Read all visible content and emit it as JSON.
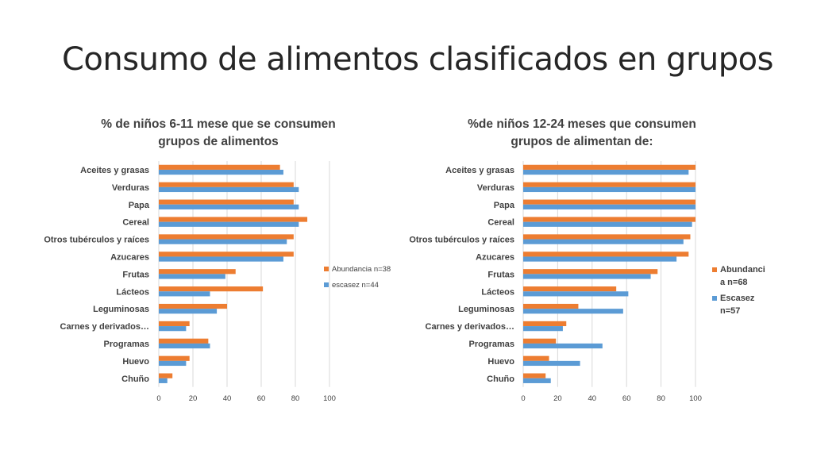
{
  "slide": {
    "title": "Consumo de alimentos clasificados en grupos"
  },
  "colors": {
    "series_orange": "#ED7D31",
    "series_blue": "#5B9BD5",
    "gridline": "#D9D9D9",
    "text": "#404040"
  },
  "chart_data": [
    {
      "type": "bar",
      "orientation": "horizontal",
      "title_lines": [
        "% de niños 6-11 mese que se consumen",
        "grupos de alimentos"
      ],
      "categories": [
        "Aceites y grasas",
        "Verduras",
        "Papa",
        "Cereal",
        "Otros tubérculos y raíces",
        "Azucares",
        "Frutas",
        "Lácteos",
        "Leguminosas",
        "Carnes y derivados…",
        "Programas",
        "Huevo",
        "Chuño"
      ],
      "series": [
        {
          "name": "Abundancia n=38",
          "values": [
            71,
            79,
            79,
            87,
            79,
            79,
            45,
            61,
            40,
            18,
            29,
            18,
            8
          ]
        },
        {
          "name": "escasez n=44",
          "values": [
            73,
            82,
            82,
            82,
            75,
            73,
            39,
            30,
            34,
            16,
            30,
            16,
            5
          ]
        }
      ],
      "xlim": [
        0,
        100
      ],
      "xticks": [
        "0",
        "20",
        "40",
        "60",
        "80",
        "100"
      ],
      "grid": true,
      "legend_position": "right",
      "legend_lines": [
        [
          "Abundancia n=38"
        ],
        [
          "escasez n=44"
        ]
      ]
    },
    {
      "type": "bar",
      "orientation": "horizontal",
      "title_lines": [
        "%de niños 12-24 meses que consumen",
        "grupos de  alimentan de:"
      ],
      "categories": [
        "Aceites y grasas",
        "Verduras",
        "Papa",
        "Cereal",
        "Otros tubérculos y raíces",
        "Azucares",
        "Frutas",
        "Lácteos",
        "Leguminosas",
        "Carnes y derivados…",
        "Programas",
        "Huevo",
        "Chuño"
      ],
      "series": [
        {
          "name": "Abundancia n=68",
          "values": [
            100,
            100,
            100,
            100,
            97,
            96,
            78,
            54,
            32,
            25,
            19,
            15,
            13
          ]
        },
        {
          "name": "Escasez n=57",
          "values": [
            96,
            100,
            100,
            98,
            93,
            89,
            74,
            61,
            58,
            23,
            46,
            33,
            16
          ]
        }
      ],
      "xlim": [
        0,
        100
      ],
      "xticks": [
        "0",
        "20",
        "40",
        "60",
        "80",
        "100"
      ],
      "grid": true,
      "legend_position": "right",
      "legend_lines": [
        [
          "Abundanci",
          "a n=68"
        ],
        [
          "Escasez",
          "n=57"
        ]
      ]
    }
  ]
}
